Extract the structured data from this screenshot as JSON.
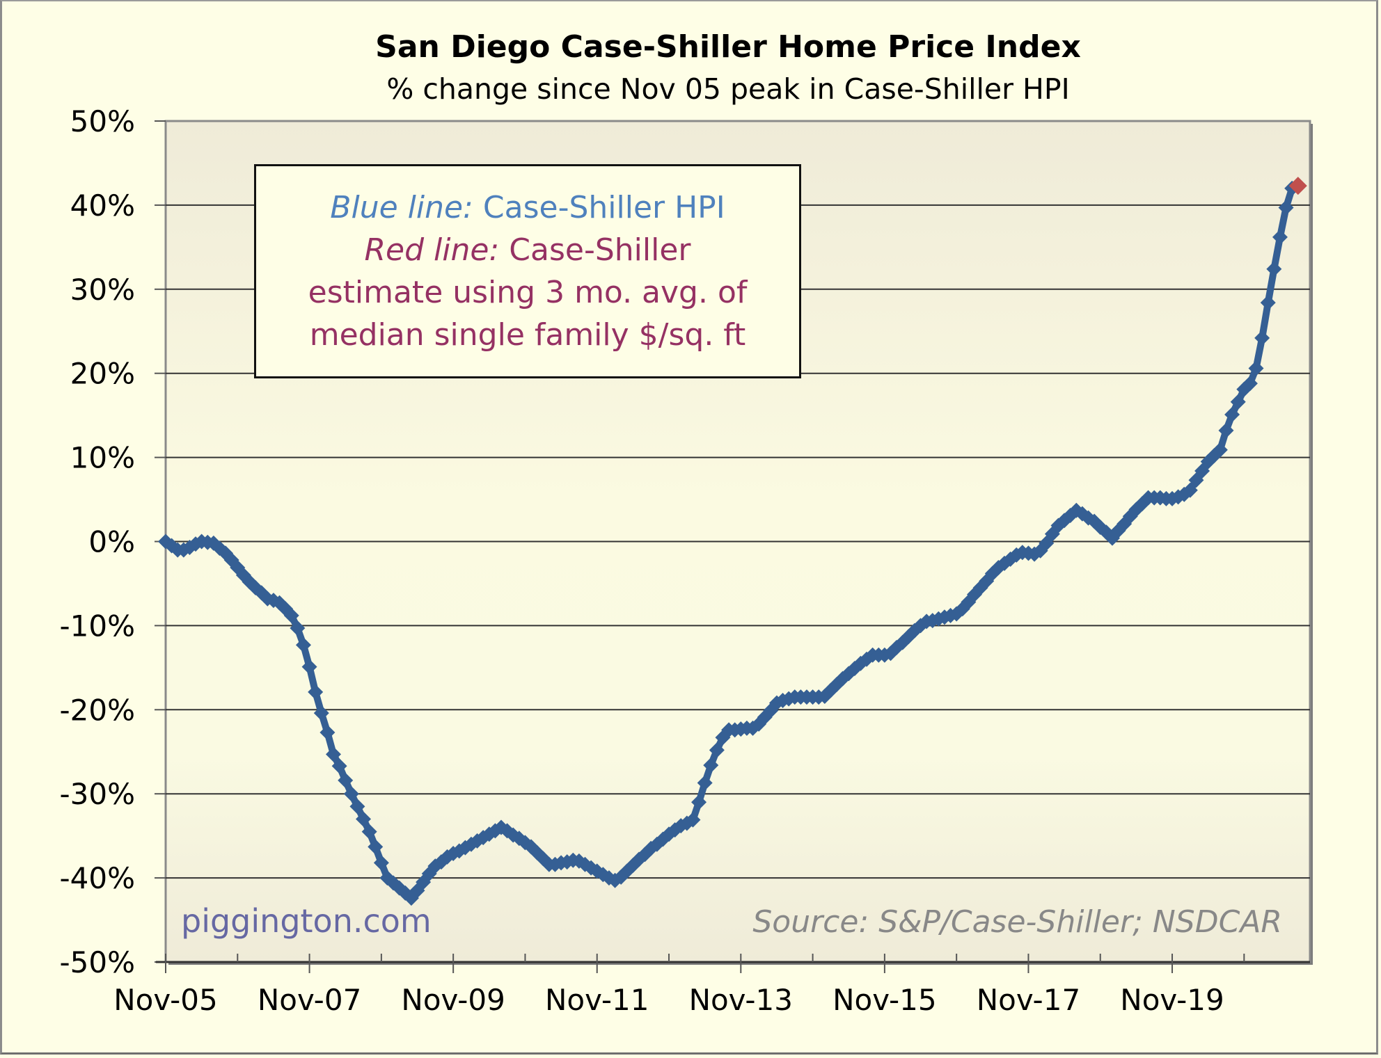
{
  "chart_data": {
    "type": "line",
    "title": "San Diego Case-Shiller Home Price Index",
    "subtitle": "% change since Nov 05 peak in Case-Shiller HPI",
    "xlabel": "",
    "ylabel": "",
    "x_unit": "months since Nov 2005",
    "xlim": [
      0,
      191
    ],
    "ylim": [
      -50,
      50
    ],
    "grid": true,
    "y_ticks": [
      {
        "value": 50,
        "label": "50%"
      },
      {
        "value": 40,
        "label": "40%"
      },
      {
        "value": 30,
        "label": "30%"
      },
      {
        "value": 20,
        "label": "20%"
      },
      {
        "value": 10,
        "label": "10%"
      },
      {
        "value": 0,
        "label": "0%"
      },
      {
        "value": -10,
        "label": "-10%"
      },
      {
        "value": -20,
        "label": "-20%"
      },
      {
        "value": -30,
        "label": "-30%"
      },
      {
        "value": -40,
        "label": "-40%"
      },
      {
        "value": -50,
        "label": "-50%"
      }
    ],
    "x_ticks": [
      {
        "value": 0,
        "label": "Nov-05"
      },
      {
        "value": 24,
        "label": "Nov-07"
      },
      {
        "value": 48,
        "label": "Nov-09"
      },
      {
        "value": 72,
        "label": "Nov-11"
      },
      {
        "value": 96,
        "label": "Nov-13"
      },
      {
        "value": 120,
        "label": "Nov-15"
      },
      {
        "value": 144,
        "label": "Nov-17"
      },
      {
        "value": 168,
        "label": "Nov-19"
      }
    ],
    "x_minor_ticks": [
      12,
      36,
      60,
      84,
      108,
      132,
      156,
      180
    ],
    "series": [
      {
        "name": "Case-Shiller HPI",
        "color": "#355f94",
        "marker": "diamond",
        "x_start": 0,
        "x_step": 1,
        "values": [
          0,
          -0.5,
          -1.0,
          -1.0,
          -0.7,
          -0.3,
          0,
          -0.1,
          -0.2,
          -0.8,
          -1.4,
          -2.2,
          -3.1,
          -4.0,
          -4.8,
          -5.5,
          -6.1,
          -6.8,
          -7.0,
          -7.3,
          -8.0,
          -8.8,
          -10.3,
          -12.3,
          -14.9,
          -17.9,
          -20.4,
          -22.7,
          -25.3,
          -26.7,
          -28.4,
          -30.0,
          -31.5,
          -33.0,
          -34.5,
          -36.3,
          -38.2,
          -40.0,
          -40.6,
          -41.2,
          -41.8,
          -42.4,
          -41.5,
          -40.5,
          -39.5,
          -38.6,
          -38.1,
          -37.5,
          -37.1,
          -36.8,
          -36.4,
          -36.0,
          -35.6,
          -35.2,
          -34.8,
          -34.4,
          -34.0,
          -34.4,
          -34.9,
          -35.3,
          -35.8,
          -36.3,
          -37.0,
          -37.7,
          -38.4,
          -38.4,
          -38.2,
          -38.1,
          -37.9,
          -38.0,
          -38.4,
          -38.8,
          -39.2,
          -39.6,
          -40.0,
          -40.3,
          -39.9,
          -39.2,
          -38.5,
          -37.8,
          -37.2,
          -36.5,
          -36.0,
          -35.4,
          -34.8,
          -34.3,
          -33.8,
          -33.5,
          -33.1,
          -31.0,
          -28.7,
          -26.6,
          -24.8,
          -23.3,
          -22.4,
          -22.4,
          -22.3,
          -22.2,
          -22.2,
          -21.7,
          -20.9,
          -20.1,
          -19.2,
          -18.9,
          -18.7,
          -18.5,
          -18.5,
          -18.5,
          -18.5,
          -18.5,
          -18.4,
          -17.7,
          -17.0,
          -16.3,
          -15.7,
          -15.1,
          -14.5,
          -14.0,
          -13.5,
          -13.5,
          -13.5,
          -13.3,
          -12.6,
          -12.0,
          -11.3,
          -10.6,
          -10.0,
          -9.5,
          -9.4,
          -9.2,
          -9.0,
          -8.8,
          -8.6,
          -8.0,
          -7.2,
          -6.3,
          -5.5,
          -4.7,
          -3.8,
          -3.1,
          -2.6,
          -2.1,
          -1.6,
          -1.3,
          -1.4,
          -1.5,
          -1.1,
          -0.2,
          0.9,
          1.9,
          2.5,
          3.1,
          3.7,
          3.3,
          2.8,
          2.4,
          1.7,
          1.1,
          0.4,
          1.3,
          2.1,
          3.0,
          3.8,
          4.5,
          5.2,
          5.2,
          5.2,
          5.1,
          5.1,
          5.3,
          5.6,
          6.1,
          7.3,
          8.4,
          9.5,
          10.2,
          10.9,
          13.2,
          15.1,
          16.6,
          18.1,
          18.8,
          20.6,
          24.2,
          28.4,
          32.4,
          36.2,
          39.7,
          42.0
        ]
      },
      {
        "name": "Case-Shiller estimate using 3 mo. avg. of median single family $/sq. ft",
        "color": "#c0504d",
        "marker": "diamond",
        "x": [
          189
        ],
        "values": [
          42.3
        ]
      }
    ],
    "legend": {
      "placement": "top-left",
      "blue_label_italic": "Blue line:",
      "blue_label_text": "Case-Shiller HPI",
      "red_label_italic": "Red line:",
      "red_label_text": "Case-Shiller",
      "red_line2": "estimate using 3 mo. avg. of",
      "red_line3": "median single family $/sq. ft"
    },
    "annotations": {
      "watermark": "piggington.com",
      "source": "Source: S&P/Case-Shiller; NSDCAR"
    }
  },
  "colors": {
    "background": "#fefee6",
    "plot_background_top": "#efebd8",
    "plot_background_bottom": "#fdfce4",
    "blue_text": "#4f81bd",
    "red_text": "#953163"
  }
}
